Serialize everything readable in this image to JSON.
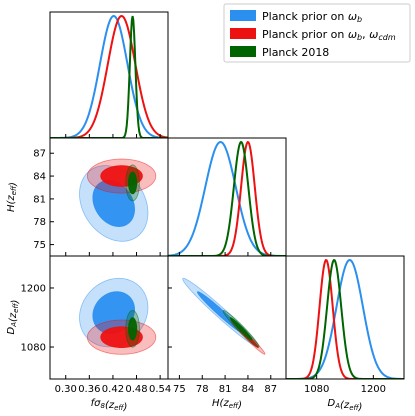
{
  "chart_data": {
    "type": "corner",
    "parameters": [
      {
        "key": "fs8",
        "label": "fσ8(z_eff)",
        "range": [
          0.26,
          0.56
        ],
        "ticks": [
          0.3,
          0.36,
          0.42,
          0.48,
          0.54
        ],
        "tick_labels": [
          "0.30",
          "0.36",
          "0.42",
          "0.48",
          "0.54"
        ]
      },
      {
        "key": "H",
        "label": "H(z_eff)",
        "range": [
          73.5,
          89.0
        ],
        "ticks": [
          75,
          78,
          81,
          84,
          87
        ],
        "tick_labels": [
          "75",
          "78",
          "81",
          "84",
          "87"
        ]
      },
      {
        "key": "DA",
        "label": "D_A(z_eff)",
        "range": [
          1015,
          1265
        ],
        "ticks": [
          1080,
          1200
        ],
        "tick_labels": [
          "1080",
          "1200"
        ]
      }
    ],
    "series": [
      {
        "name": "Planck prior on ω_b",
        "color": "#2b8ff0",
        "mean": [
          0.422,
          80.4,
          1150
        ],
        "sigma": [
          0.035,
          2.0,
          28
        ],
        "corr": {
          "fs8_H": -0.25,
          "fs8_DA": 0.15,
          "H_DA": -0.98
        }
      },
      {
        "name": "Planck prior on ω_b, ω_cdm",
        "color": "#ee1111",
        "mean": [
          0.442,
          84.0,
          1100
        ],
        "sigma": [
          0.035,
          0.9,
          14
        ],
        "corr": {
          "fs8_H": 0.0,
          "fs8_DA": 0.0,
          "H_DA": -0.98
        }
      },
      {
        "name": "Planck 2018",
        "color": "#006400",
        "mean": [
          0.47,
          83.1,
          1117
        ],
        "sigma": [
          0.007,
          0.95,
          15
        ],
        "corr": {
          "fs8_H": 0.0,
          "fs8_DA": 0.0,
          "H_DA": -0.97
        }
      }
    ],
    "legend_position": "top-right",
    "legend": [
      {
        "main": "Planck prior on ",
        "sym1": "ω",
        "sub1": "b",
        "mid": "",
        "sym2": "",
        "sub2": ""
      },
      {
        "main": "Planck prior on ",
        "sym1": "ω",
        "sub1": "b",
        "mid": ", ",
        "sym2": "ω",
        "sub2": "cdm"
      },
      {
        "main": "Planck 2018",
        "sym1": "",
        "sub1": "",
        "mid": "",
        "sym2": "",
        "sub2": ""
      }
    ],
    "axis_labels": {
      "fs8": {
        "pre": "fσ",
        "sub": "8",
        "post": "(z",
        "sub2": "eff",
        "end": ")"
      },
      "H": {
        "pre": "H",
        "sub": "",
        "post": "(z",
        "sub2": "eff",
        "end": ")"
      },
      "DA": {
        "pre": "D",
        "sub": "A",
        "post": "(z",
        "sub2": "eff",
        "end": ")"
      }
    }
  }
}
